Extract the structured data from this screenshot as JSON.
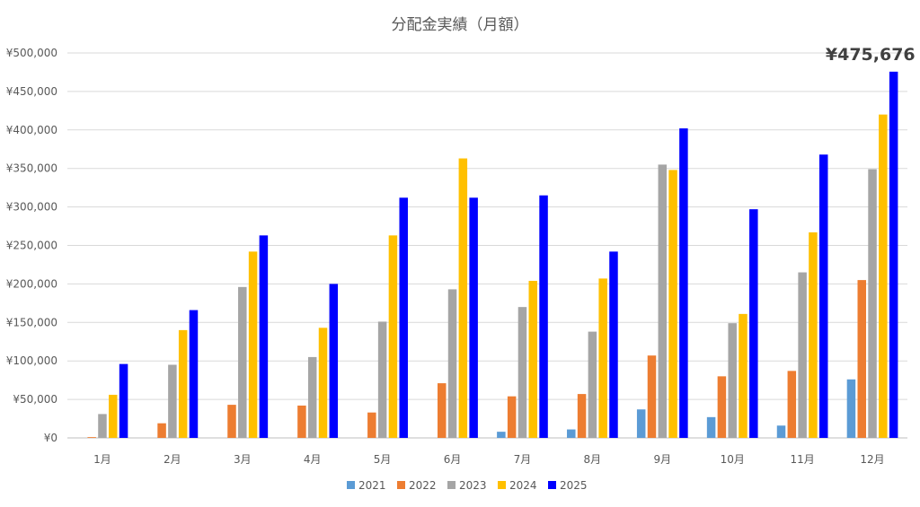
{
  "chart_data": {
    "type": "bar",
    "title": "分配金実績（月額）",
    "xlabel": "",
    "ylabel": "",
    "categories": [
      "1月",
      "2月",
      "3月",
      "4月",
      "5月",
      "6月",
      "7月",
      "8月",
      "9月",
      "10月",
      "11月",
      "12月"
    ],
    "ylim": [
      0,
      500000
    ],
    "y_ticks": [
      0,
      50000,
      100000,
      150000,
      200000,
      250000,
      300000,
      350000,
      400000,
      450000,
      500000
    ],
    "y_tick_labels": [
      "¥0",
      "¥50,000",
      "¥100,000",
      "¥150,000",
      "¥200,000",
      "¥250,000",
      "¥300,000",
      "¥350,000",
      "¥400,000",
      "¥450,000",
      "¥500,000"
    ],
    "grid": "horizontal",
    "legend_position": "bottom",
    "series": [
      {
        "name": "2021",
        "color": "#5b9bd5",
        "values": [
          0,
          0,
          0,
          0,
          0,
          0,
          8000,
          11000,
          37000,
          27000,
          16000,
          76000
        ]
      },
      {
        "name": "2022",
        "color": "#ed7d31",
        "values": [
          1000,
          19000,
          43000,
          42000,
          33000,
          71000,
          54000,
          57000,
          107000,
          80000,
          87000,
          205000
        ]
      },
      {
        "name": "2023",
        "color": "#a5a5a5",
        "values": [
          31000,
          95000,
          196000,
          105000,
          151000,
          193000,
          170000,
          138000,
          355000,
          149000,
          215000,
          349000
        ]
      },
      {
        "name": "2024",
        "color": "#ffc000",
        "values": [
          56000,
          140000,
          242000,
          143000,
          263000,
          363000,
          204000,
          207000,
          348000,
          161000,
          267000,
          420000
        ]
      },
      {
        "name": "2025",
        "color": "#0000ff",
        "values": [
          96000,
          166000,
          263000,
          200000,
          312000,
          312000,
          315000,
          242000,
          402000,
          297000,
          368000,
          475676
        ]
      }
    ],
    "annotations": [
      {
        "text": "¥475,676",
        "series": "2025",
        "category": "12月"
      }
    ]
  }
}
